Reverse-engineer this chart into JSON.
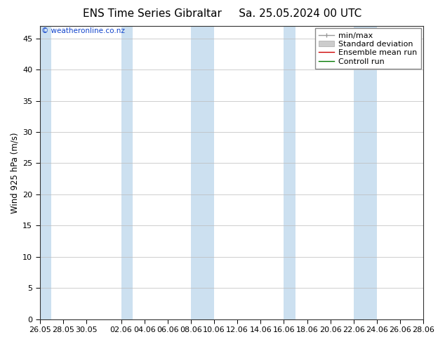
{
  "title": "ENS Time Series Gibraltar     Sa. 25.05.2024 00 UTC",
  "ylabel": "Wind 925 hPa (m/s)",
  "watermark": "© weatheronline.co.nz",
  "ylim": [
    0,
    47
  ],
  "yticks": [
    0,
    5,
    10,
    15,
    20,
    25,
    30,
    35,
    40,
    45
  ],
  "background_color": "#ffffff",
  "plot_bg_color": "#ffffff",
  "band_color": "#cce0f0",
  "legend_items": [
    {
      "label": "min/max",
      "color": "#999999",
      "lw": 1.0
    },
    {
      "label": "Standard deviation",
      "color": "#cccccc",
      "lw": 6
    },
    {
      "label": "Ensemble mean run",
      "color": "#cc0000",
      "lw": 1.0
    },
    {
      "label": "Controll run",
      "color": "#007700",
      "lw": 1.0
    }
  ],
  "x_labels": [
    "26.05",
    "28.05",
    "30.05",
    "02.06",
    "04.06",
    "06.06",
    "08.06",
    "10.06",
    "12.06",
    "14.06",
    "16.06",
    "18.06",
    "20.06",
    "22.06",
    "24.06",
    "26.06",
    "28.06"
  ],
  "x_tick_days_from_start": [
    0,
    2,
    4,
    7,
    9,
    11,
    13,
    15,
    17,
    19,
    21,
    23,
    25,
    27,
    29,
    31,
    33
  ],
  "weekend_bands": [
    [
      0,
      1
    ],
    [
      7,
      8
    ],
    [
      13,
      15
    ],
    [
      21,
      22
    ],
    [
      27,
      29
    ]
  ],
  "x_total_days": 33,
  "title_fontsize": 11,
  "axis_fontsize": 8,
  "legend_fontsize": 8
}
